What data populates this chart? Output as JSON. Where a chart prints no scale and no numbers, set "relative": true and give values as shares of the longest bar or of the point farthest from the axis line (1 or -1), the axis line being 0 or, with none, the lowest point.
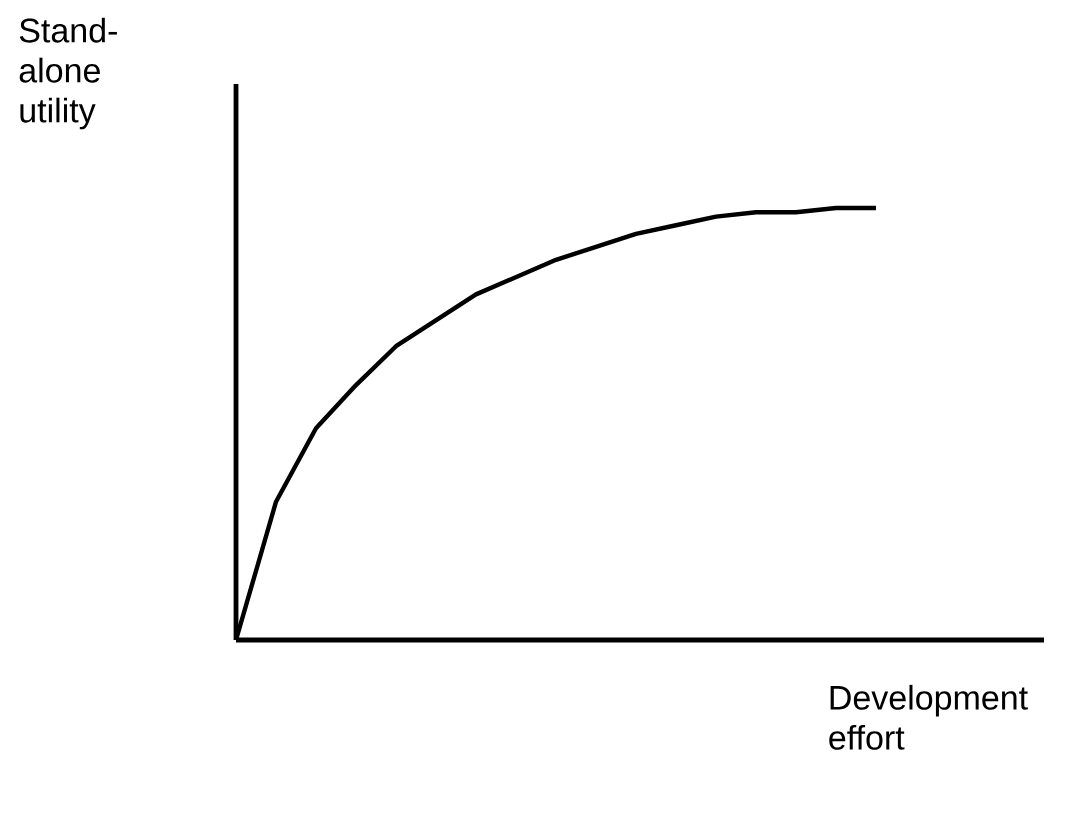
{
  "chart_data": {
    "type": "line",
    "xlabel": "Development effort",
    "ylabel": "Stand-alone utility",
    "relative": true,
    "tick_labels": false,
    "marker": "none",
    "categories": [
      null,
      null,
      null,
      null,
      null,
      null,
      null,
      null,
      null,
      null,
      null,
      null,
      null,
      null,
      null,
      null,
      null,
      null,
      null,
      null,
      null
    ],
    "series": [
      {
        "color": "#000000",
        "values": [
          0,
          0.32,
          0.49,
          0.59,
          0.68,
          0.74,
          0.8,
          0.84,
          0.88,
          0.91,
          0.94,
          0.96,
          0.98,
          0.99,
          0.99,
          1,
          1,
          null,
          null,
          null,
          null
        ]
      }
    ]
  }
}
